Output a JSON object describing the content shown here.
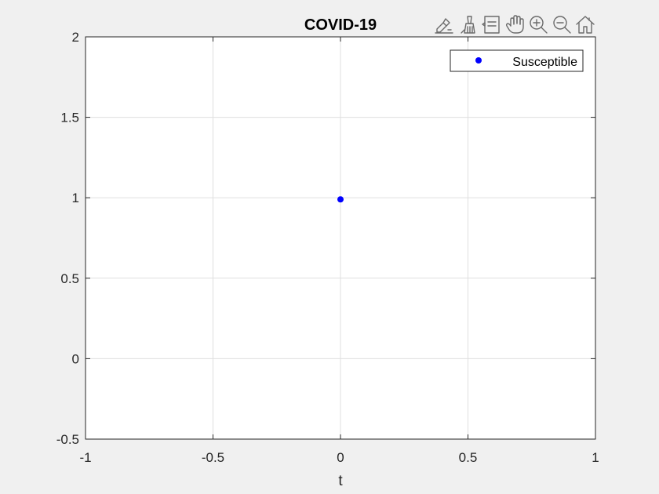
{
  "toolbar": {
    "items": [
      {
        "name": "edit-plot-icon",
        "tooltip": "Edit"
      },
      {
        "name": "brush-icon",
        "tooltip": "Brush"
      },
      {
        "name": "data-tips-icon",
        "tooltip": "Data Tips"
      },
      {
        "name": "pan-icon",
        "tooltip": "Pan"
      },
      {
        "name": "zoom-in-icon",
        "tooltip": "Zoom In"
      },
      {
        "name": "zoom-out-icon",
        "tooltip": "Zoom Out"
      },
      {
        "name": "home-icon",
        "tooltip": "Restore View"
      }
    ]
  },
  "colors": {
    "figure_background": "#f0f0f0",
    "axes_background": "#ffffff",
    "series": "#0000ff",
    "grid": "#dfdfdf",
    "axis": "#262626"
  },
  "chart_data": {
    "type": "scatter",
    "title": "COVID-19",
    "xlabel": "t",
    "ylabel": "",
    "xlim": [
      -1,
      1
    ],
    "ylim": [
      -0.5,
      2
    ],
    "xticks": [
      -1,
      -0.5,
      0,
      0.5,
      1
    ],
    "xtick_labels": [
      "-1",
      "-0.5",
      "0",
      "0.5",
      "1"
    ],
    "yticks": [
      -0.5,
      0,
      0.5,
      1,
      1.5,
      2
    ],
    "ytick_labels": [
      "-0.5",
      "0",
      "0.5",
      "1",
      "1.5",
      "2"
    ],
    "grid": true,
    "legend_position": "top-right",
    "series": [
      {
        "name": "Susceptible",
        "marker": "dot",
        "color": "#0000ff",
        "x": [
          0
        ],
        "y": [
          0.99
        ]
      }
    ]
  }
}
